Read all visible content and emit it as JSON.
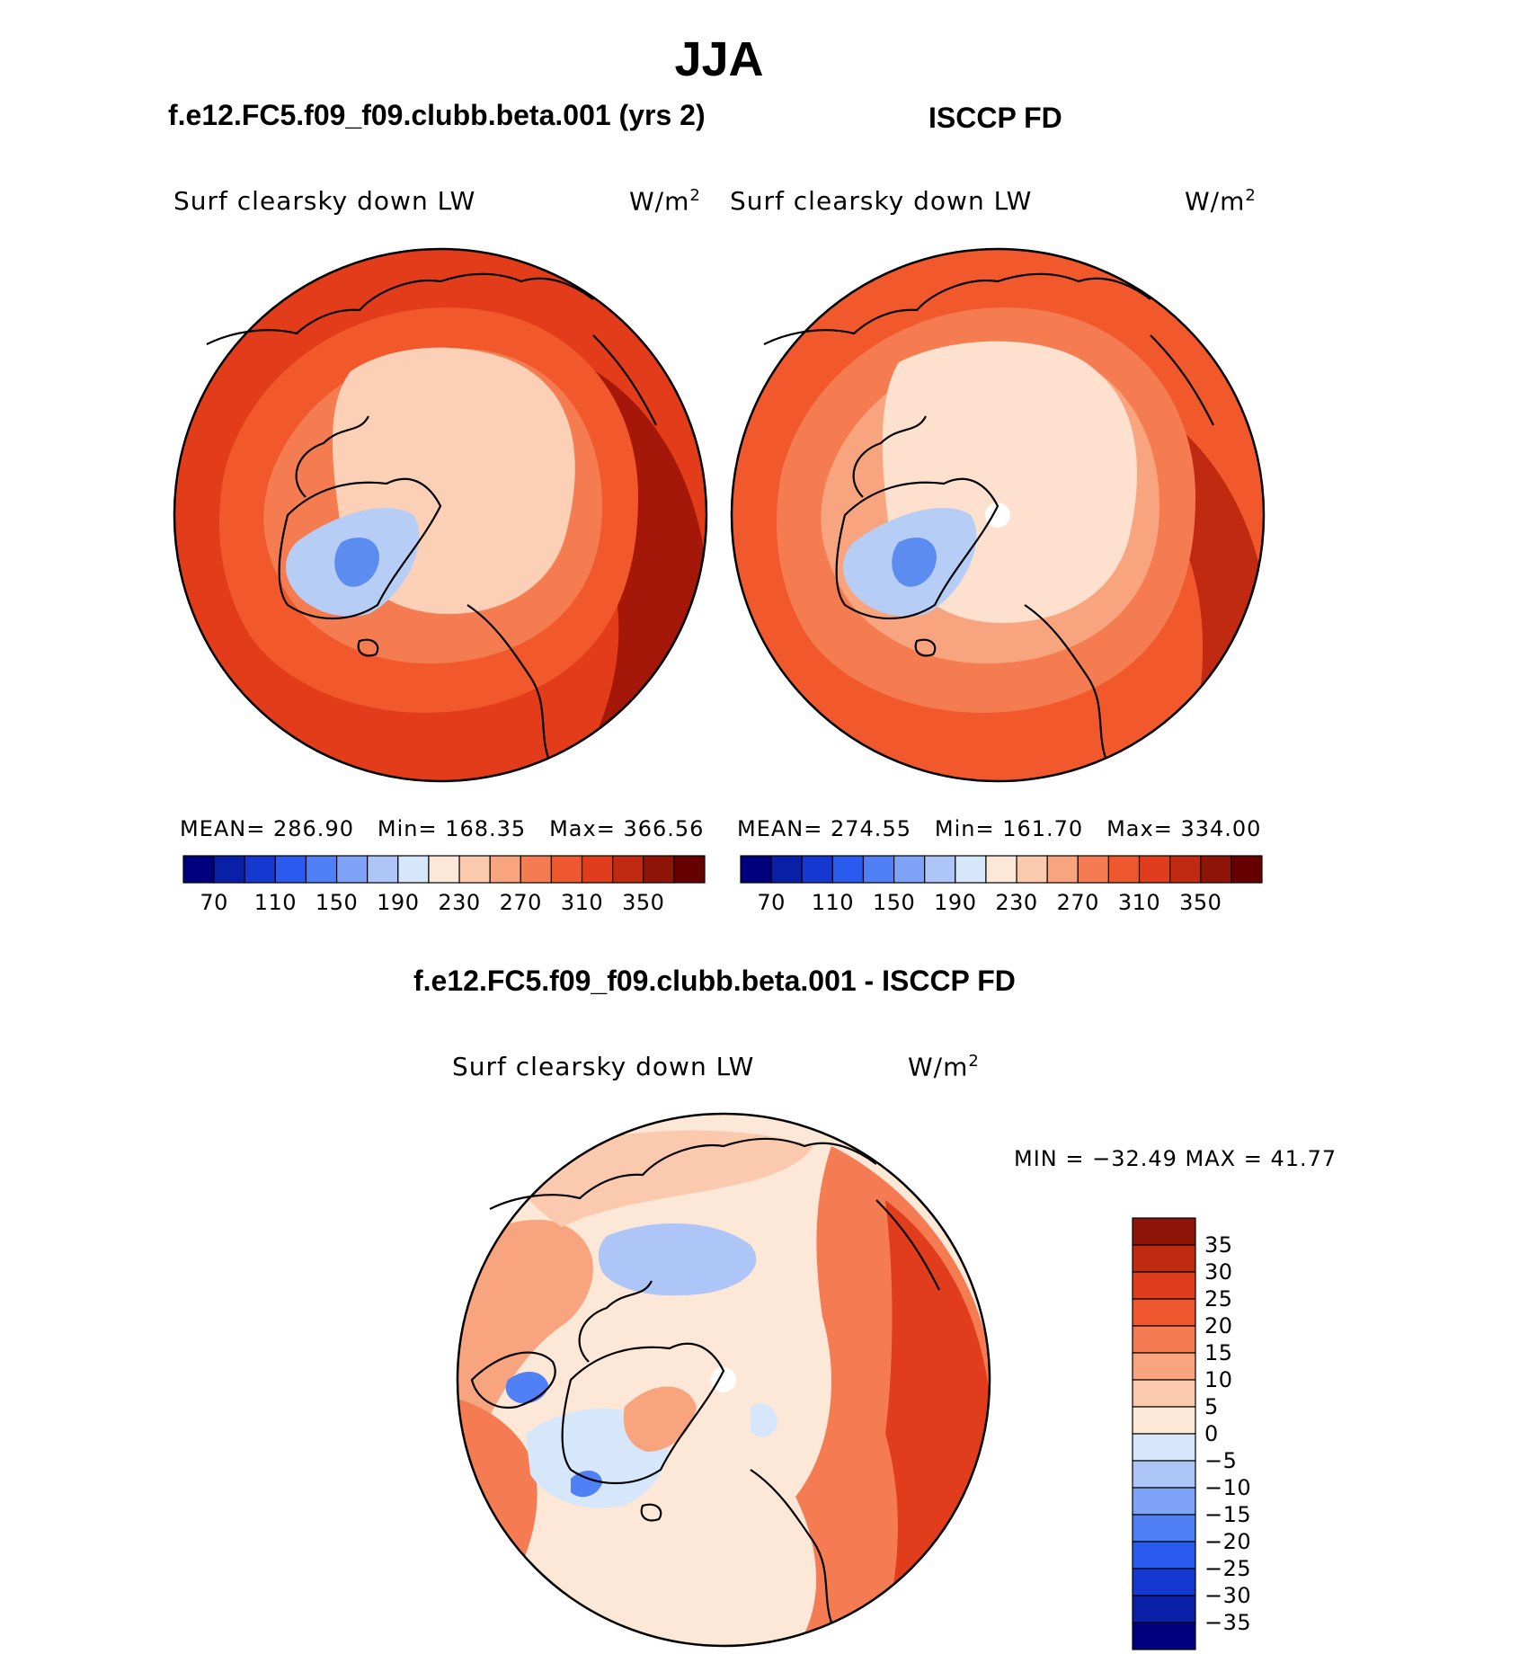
{
  "title": "JJA",
  "panels": [
    {
      "id": "model",
      "heading": "f.e12.FC5.f09_f09.clubb.beta.001 (yrs 2)",
      "variable": "Surf clearsky down LW",
      "units": "W/m",
      "units_sup": "2",
      "stats": {
        "mean_label": "MEAN=",
        "mean": "286.90",
        "min_label": "Min=",
        "min": "168.35",
        "max_label": "Max=",
        "max": "366.56"
      }
    },
    {
      "id": "obs",
      "heading": "ISCCP FD",
      "variable": "Surf clearsky down LW",
      "units": "W/m",
      "units_sup": "2",
      "stats": {
        "mean_label": "MEAN=",
        "mean": "274.55",
        "min_label": "Min=",
        "min": "161.70",
        "max_label": "Max=",
        "max": "334.00"
      }
    }
  ],
  "diff": {
    "heading": "f.e12.FC5.f09_f09.clubb.beta.001 - ISCCP FD",
    "variable": "Surf clearsky down LW",
    "units": "W/m",
    "units_sup": "2",
    "minmax": "MIN = −32.49 MAX =  41.77"
  },
  "abs_colorbar": {
    "colors": [
      "#00007f",
      "#0a1fa8",
      "#1438d0",
      "#2a5aee",
      "#4f80f5",
      "#7fa3f6",
      "#adc6f7",
      "#d6e7fb",
      "#fde7d7",
      "#fbc9ad",
      "#f8a47e",
      "#f47b52",
      "#ef572f",
      "#e13c1c",
      "#c02a10",
      "#8f1408",
      "#660000"
    ],
    "ticks": [
      "70",
      "110",
      "150",
      "190",
      "230",
      "270",
      "310",
      "350"
    ]
  },
  "diff_colorbar": {
    "colors": [
      "#00007f",
      "#0a1fa8",
      "#1438d0",
      "#2a5aee",
      "#4f80f5",
      "#7fa3f6",
      "#adc6f7",
      "#d6e7fb",
      "#fde7d7",
      "#fbc9ad",
      "#f8a47e",
      "#f47b52",
      "#ef572f",
      "#e13c1c",
      "#c02a10",
      "#8f1408"
    ],
    "ticks": [
      "−35",
      "−30",
      "−25",
      "−20",
      "−15",
      "−10",
      "−5",
      "0",
      "5",
      "10",
      "15",
      "20",
      "25",
      "30",
      "35"
    ]
  },
  "map_colors": {
    "model": {
      "outer": "#e23c1a",
      "mid": "#f1592d",
      "inner": "#f47c50",
      "polar": "#fbd0b6",
      "greenland_low": "#b6cdf6",
      "greenland_core": "#5c8cf0",
      "hot": "#a51809"
    },
    "obs": {
      "outer": "#f1592d",
      "mid": "#f47c50",
      "inner": "#f8a47e",
      "polar": "#fde0cd",
      "greenland_low": "#b6cdf6",
      "greenland_core": "#5c8cf0",
      "hot": "#c02a10"
    },
    "diff": {
      "base": "#fde7d7",
      "pos1": "#fbc9ad",
      "pos2": "#f8a47e",
      "pos3": "#f47b52",
      "pos4": "#e13c1c",
      "neg1": "#d6e7fb",
      "neg2": "#adc6f7",
      "neg3": "#4f80f5"
    }
  }
}
